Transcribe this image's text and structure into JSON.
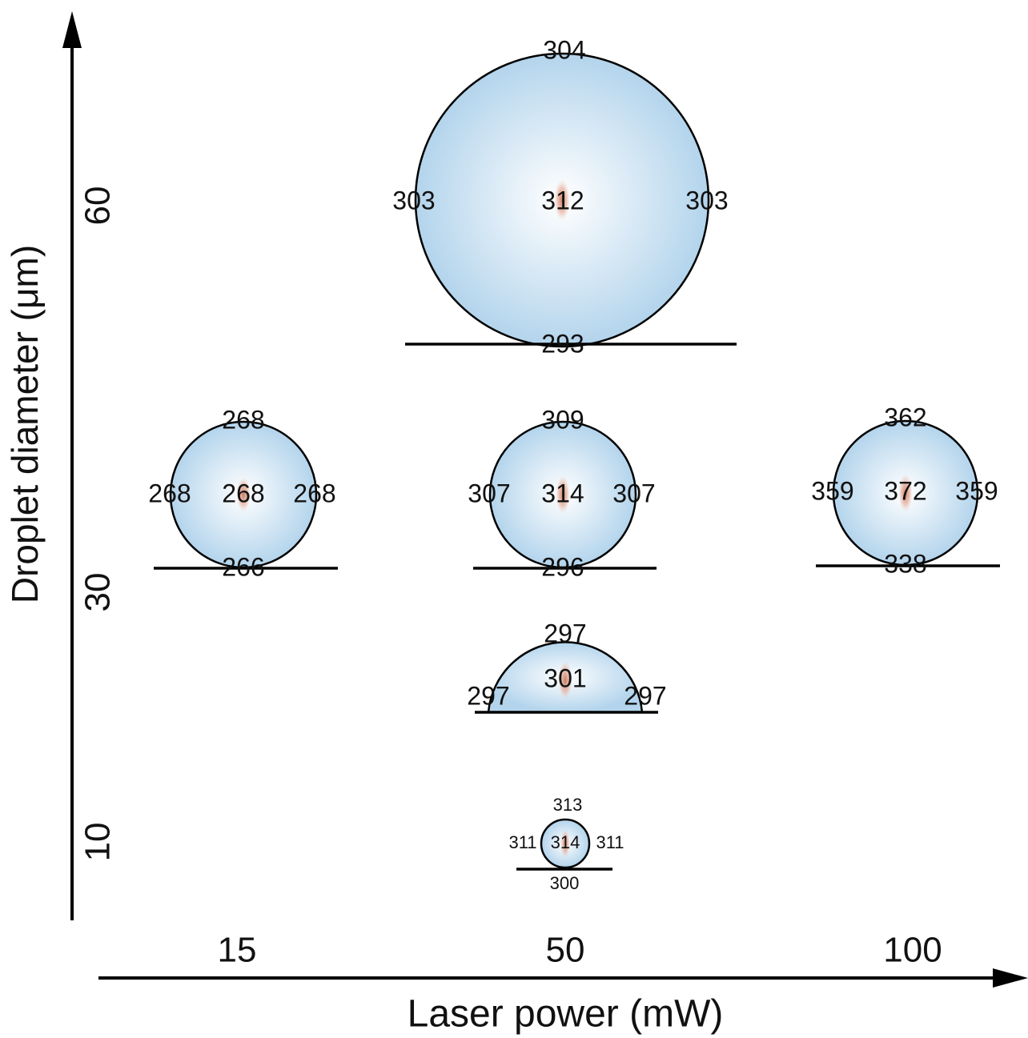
{
  "y_axis": {
    "label": "Droplet diameter (μm)",
    "ticks": [
      "10",
      "30",
      "60"
    ]
  },
  "x_axis": {
    "label": "Laser power (mW)",
    "ticks": [
      "15",
      "50",
      "100"
    ]
  },
  "droplets": [
    {
      "labels": {
        "top": "304",
        "left": "303",
        "center": "312",
        "right": "303",
        "bottom": "293"
      }
    },
    {
      "labels": {
        "top": "268",
        "left": "268",
        "center": "268",
        "right": "268",
        "bottom": "266"
      }
    },
    {
      "labels": {
        "top": "309",
        "left": "307",
        "center": "314",
        "right": "307",
        "bottom": "296"
      }
    },
    {
      "labels": {
        "top": "362",
        "left": "359",
        "center": "372",
        "right": "359",
        "bottom": "338"
      }
    },
    {
      "labels": {
        "top": "297",
        "left": "297",
        "center": "301",
        "right": "297"
      }
    },
    {
      "labels": {
        "top": "313",
        "left": "311",
        "center": "314",
        "right": "311",
        "bottom": "300"
      }
    }
  ]
}
